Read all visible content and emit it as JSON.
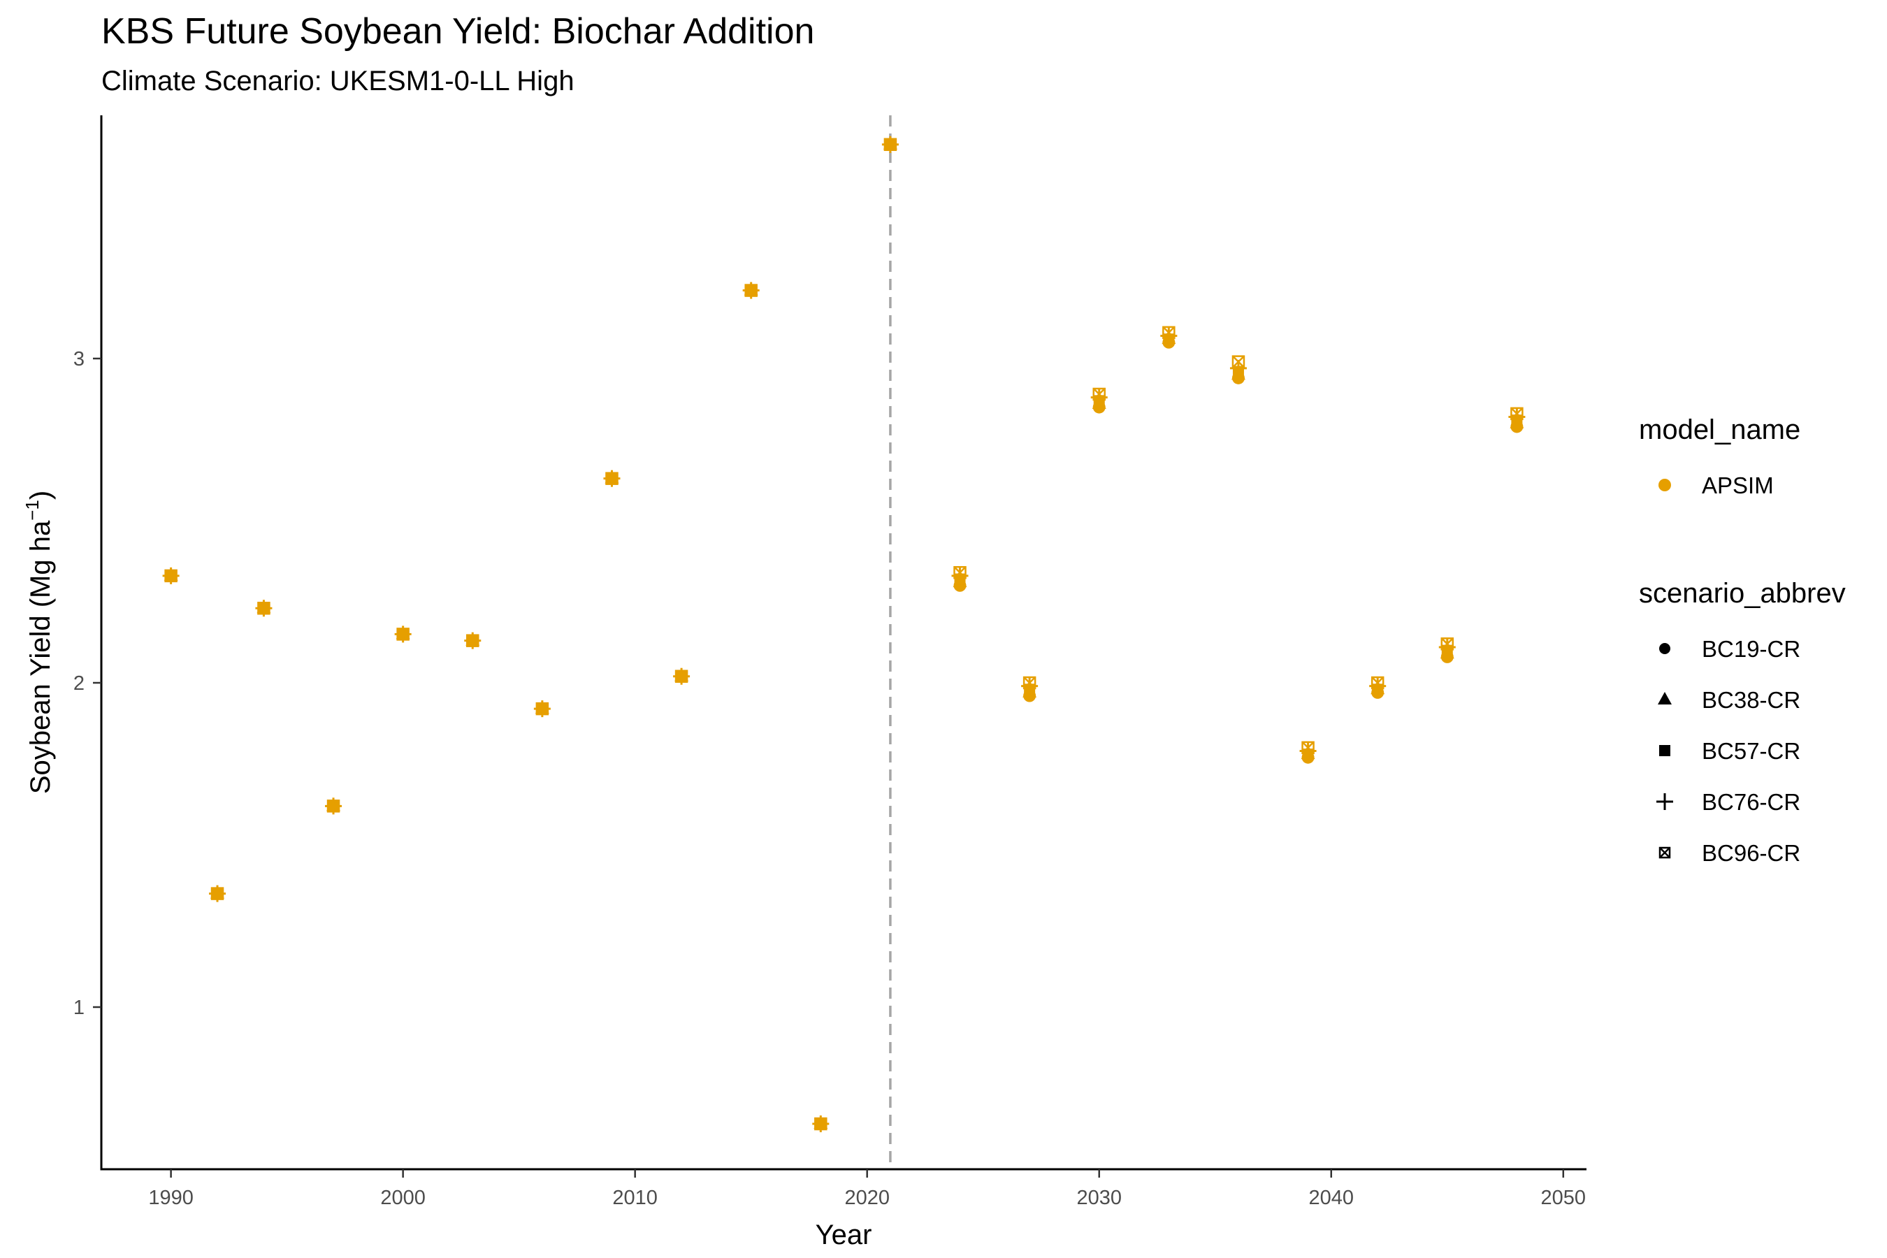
{
  "title": "KBS Future Soybean Yield: Biochar Addition",
  "subtitle": "Climate Scenario: UKESM1-0-LL High",
  "chart_data": {
    "type": "scatter",
    "title": "KBS Future Soybean Yield: Biochar Addition",
    "subtitle": "Climate Scenario: UKESM1-0-LL High",
    "xlabel": "Year",
    "ylabel_main": "Soybean Yield (Mg ha",
    "ylabel_sup": "−1",
    "ylabel_end": ")",
    "xlim": [
      1987,
      2051
    ],
    "ylim": [
      0.5,
      3.75
    ],
    "x_ticks": [
      1990,
      2000,
      2010,
      2020,
      2030,
      2040,
      2050
    ],
    "y_ticks": [
      1,
      2,
      3
    ],
    "vline_x": 2021,
    "grid": false,
    "point_color": "#E69F00",
    "legend_position": "right",
    "legend_color": {
      "title": "model_name",
      "entries": [
        {
          "label": "APSIM",
          "color": "#E69F00"
        }
      ]
    },
    "legend_shape": {
      "title": "scenario_abbrev",
      "entries": [
        {
          "label": "BC19-CR",
          "shape": "circle"
        },
        {
          "label": "BC38-CR",
          "shape": "triangle"
        },
        {
          "label": "BC57-CR",
          "shape": "square"
        },
        {
          "label": "BC76-CR",
          "shape": "plus"
        },
        {
          "label": "BC96-CR",
          "shape": "boxcross"
        }
      ]
    },
    "model": "APSIM",
    "x": [
      1990,
      1992,
      1994,
      1997,
      2000,
      2003,
      2006,
      2009,
      2012,
      2015,
      2018,
      2021,
      2024,
      2027,
      2030,
      2033,
      2036,
      2039,
      2042,
      2045,
      2048
    ],
    "series": [
      {
        "name": "BC19-CR",
        "shape": "circle",
        "values": [
          2.33,
          1.35,
          2.23,
          1.62,
          2.15,
          2.13,
          1.92,
          2.63,
          2.02,
          3.21,
          0.64,
          3.66,
          2.3,
          1.96,
          2.85,
          3.05,
          2.94,
          1.77,
          1.97,
          2.08,
          2.79
        ]
      },
      {
        "name": "BC38-CR",
        "shape": "triangle",
        "values": [
          2.33,
          1.35,
          2.23,
          1.62,
          2.15,
          2.13,
          1.92,
          2.63,
          2.02,
          3.21,
          0.64,
          3.66,
          2.31,
          1.97,
          2.86,
          3.06,
          2.95,
          1.78,
          1.98,
          2.09,
          2.8
        ]
      },
      {
        "name": "BC57-CR",
        "shape": "square",
        "values": [
          2.33,
          1.35,
          2.23,
          1.62,
          2.15,
          2.13,
          1.92,
          2.63,
          2.02,
          3.21,
          0.64,
          3.66,
          2.32,
          1.98,
          2.87,
          3.06,
          2.96,
          1.78,
          1.98,
          2.1,
          2.81
        ]
      },
      {
        "name": "BC76-CR",
        "shape": "plus",
        "values": [
          2.33,
          1.35,
          2.23,
          1.62,
          2.15,
          2.13,
          1.92,
          2.63,
          2.02,
          3.21,
          0.64,
          3.66,
          2.33,
          1.99,
          2.88,
          3.07,
          2.97,
          1.79,
          1.99,
          2.11,
          2.82
        ]
      },
      {
        "name": "BC96-CR",
        "shape": "boxcross",
        "values": [
          2.33,
          1.35,
          2.23,
          1.62,
          2.15,
          2.13,
          1.92,
          2.63,
          2.02,
          3.21,
          0.64,
          3.66,
          2.34,
          2.0,
          2.89,
          3.08,
          2.99,
          1.8,
          2.0,
          2.12,
          2.83
        ]
      }
    ]
  }
}
